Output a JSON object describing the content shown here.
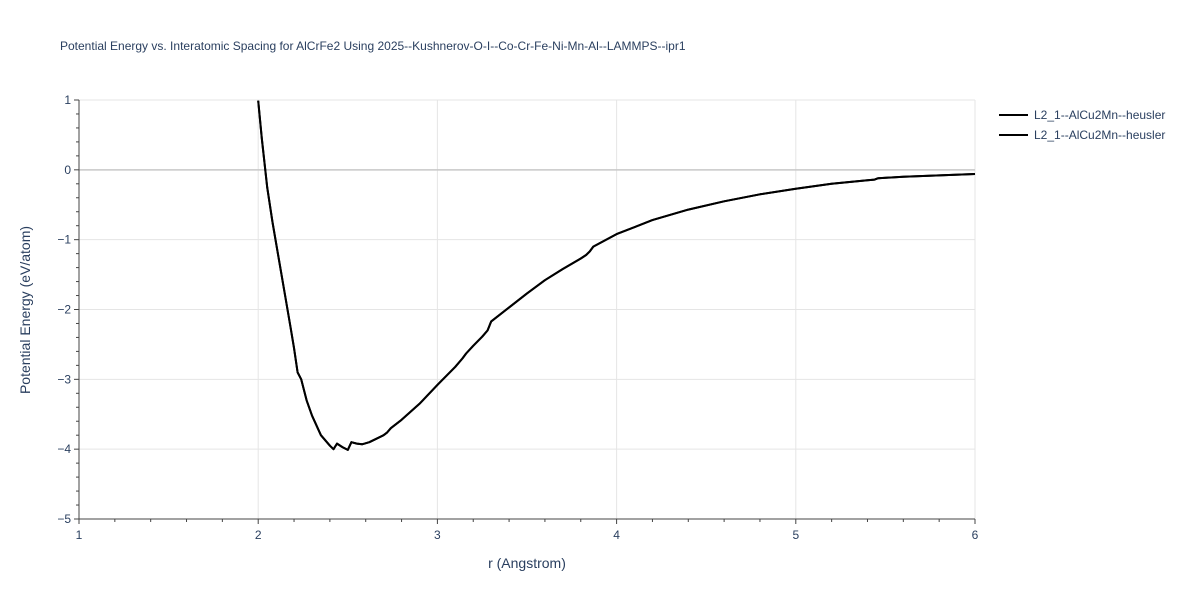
{
  "chart_data": {
    "type": "line",
    "title": "Potential Energy vs. Interatomic Spacing for AlCrFe2 Using 2025--Kushnerov-O-I--Co-Cr-Fe-Ni-Mn-Al--LAMMPS--ipr1",
    "xlabel": "r (Angstrom)",
    "ylabel": "Potential Energy (eV/atom)",
    "xlim": [
      1,
      6
    ],
    "ylim": [
      -5,
      1
    ],
    "x_ticks": [
      1,
      2,
      3,
      4,
      5,
      6
    ],
    "x_tick_labels": [
      "1",
      "2",
      "3",
      "4",
      "5",
      "6"
    ],
    "y_ticks": [
      1,
      0,
      -1,
      -2,
      -3,
      -4,
      -5
    ],
    "y_tick_labels": [
      "1",
      "0",
      "−1",
      "−2",
      "−3",
      "−4",
      "−5"
    ],
    "grid": true,
    "legend_position": "top-right",
    "series": [
      {
        "name": "L2_1--AlCu2Mn--heusler",
        "color": "#000000",
        "x": [
          2.0,
          2.02,
          2.05,
          2.08,
          2.1,
          2.15,
          2.18,
          2.2,
          2.22,
          2.24,
          2.27,
          2.3,
          2.35,
          2.4,
          2.42,
          2.44,
          2.47,
          2.5,
          2.52,
          2.55,
          2.58,
          2.62,
          2.66,
          2.7,
          2.72,
          2.74,
          2.8,
          2.9,
          3.0,
          3.05,
          3.1,
          3.14,
          3.16,
          3.2,
          3.25,
          3.28,
          3.3,
          3.4,
          3.5,
          3.6,
          3.7,
          3.8,
          3.83,
          3.85,
          3.87,
          4.0,
          4.2,
          4.4,
          4.6,
          4.8,
          5.0,
          5.2,
          5.4,
          5.44,
          5.46,
          5.6,
          5.8,
          6.0
        ],
        "y": [
          0.99,
          0.45,
          -0.25,
          -0.75,
          -1.05,
          -1.8,
          -2.25,
          -2.55,
          -2.9,
          -3.0,
          -3.3,
          -3.52,
          -3.8,
          -3.95,
          -4.0,
          -3.92,
          -3.97,
          -4.01,
          -3.9,
          -3.92,
          -3.93,
          -3.9,
          -3.85,
          -3.8,
          -3.76,
          -3.7,
          -3.58,
          -3.35,
          -3.08,
          -2.95,
          -2.82,
          -2.7,
          -2.63,
          -2.52,
          -2.39,
          -2.3,
          -2.17,
          -1.97,
          -1.77,
          -1.58,
          -1.42,
          -1.27,
          -1.22,
          -1.17,
          -1.1,
          -0.92,
          -0.72,
          -0.57,
          -0.45,
          -0.35,
          -0.27,
          -0.2,
          -0.15,
          -0.14,
          -0.12,
          -0.1,
          -0.08,
          -0.06
        ]
      },
      {
        "name": "L2_1--AlCu2Mn--heusler",
        "color": "#000000",
        "x": [
          2.0,
          2.02,
          2.05,
          2.08,
          2.1,
          2.15,
          2.18,
          2.2,
          2.22,
          2.24,
          2.27,
          2.3,
          2.35,
          2.4,
          2.42,
          2.44,
          2.47,
          2.5,
          2.52,
          2.55,
          2.58,
          2.62,
          2.66,
          2.7,
          2.72,
          2.74,
          2.8,
          2.9,
          3.0,
          3.05,
          3.1,
          3.14,
          3.16,
          3.2,
          3.25,
          3.28,
          3.3,
          3.4,
          3.5,
          3.6,
          3.7,
          3.8,
          3.83,
          3.85,
          3.87,
          4.0,
          4.2,
          4.4,
          4.6,
          4.8,
          5.0,
          5.2,
          5.4,
          5.44,
          5.46,
          5.6,
          5.8,
          6.0
        ],
        "y": [
          0.99,
          0.45,
          -0.25,
          -0.75,
          -1.05,
          -1.8,
          -2.25,
          -2.55,
          -2.9,
          -3.0,
          -3.3,
          -3.52,
          -3.8,
          -3.95,
          -4.0,
          -3.92,
          -3.97,
          -4.01,
          -3.9,
          -3.92,
          -3.93,
          -3.9,
          -3.85,
          -3.8,
          -3.76,
          -3.7,
          -3.58,
          -3.35,
          -3.08,
          -2.95,
          -2.82,
          -2.7,
          -2.63,
          -2.52,
          -2.39,
          -2.3,
          -2.17,
          -1.97,
          -1.77,
          -1.58,
          -1.42,
          -1.27,
          -1.22,
          -1.17,
          -1.1,
          -0.92,
          -0.72,
          -0.57,
          -0.45,
          -0.35,
          -0.27,
          -0.2,
          -0.15,
          -0.14,
          -0.12,
          -0.1,
          -0.08,
          -0.06
        ]
      }
    ]
  }
}
